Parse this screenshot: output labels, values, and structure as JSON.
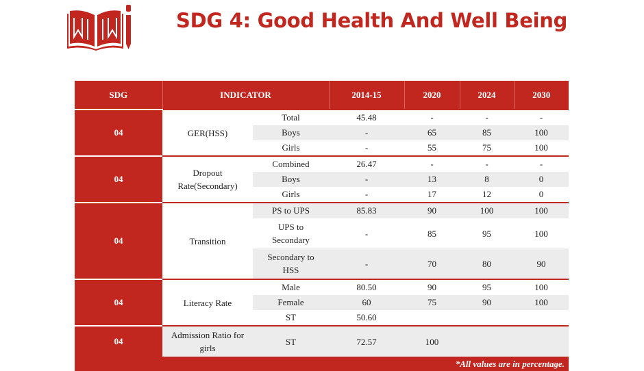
{
  "header": {
    "title": "SDG 4: Good Health And Well Being",
    "logo_icon": "book-pencil-icon",
    "accent": "#c1271f"
  },
  "table": {
    "columns": [
      "SDG",
      "INDICATOR",
      "2014-15",
      "2020",
      "2024",
      "2030"
    ],
    "groups": [
      {
        "sdg": "04",
        "indicator": "GER(HSS)",
        "rows": [
          {
            "sub": "Total",
            "v2014": "45.48",
            "v2020": "-",
            "v2024": "-",
            "v2030": "-"
          },
          {
            "sub": "Boys",
            "v2014": "-",
            "v2020": "65",
            "v2024": "85",
            "v2030": "100"
          },
          {
            "sub": "Girls",
            "v2014": "-",
            "v2020": "55",
            "v2024": "75",
            "v2030": "100"
          }
        ]
      },
      {
        "sdg": "04",
        "indicator": "Dropout Rate(Secondary)",
        "rows": [
          {
            "sub": "Combined",
            "v2014": "26.47",
            "v2020": "-",
            "v2024": "-",
            "v2030": "-"
          },
          {
            "sub": "Boys",
            "v2014": "-",
            "v2020": "13",
            "v2024": "8",
            "v2030": "0"
          },
          {
            "sub": "Girls",
            "v2014": "-",
            "v2020": "17",
            "v2024": "12",
            "v2030": "0"
          }
        ]
      },
      {
        "sdg": "04",
        "indicator": "Transition",
        "rows": [
          {
            "sub": "PS to UPS",
            "v2014": "85.83",
            "v2020": "90",
            "v2024": "100",
            "v2030": "100"
          },
          {
            "sub": "UPS to Secondary",
            "v2014": "-",
            "v2020": "85",
            "v2024": "95",
            "v2030": "100"
          },
          {
            "sub": "Secondary to HSS",
            "v2014": "-",
            "v2020": "70",
            "v2024": "80",
            "v2030": "90"
          }
        ]
      },
      {
        "sdg": "04",
        "indicator": "Literacy Rate",
        "rows": [
          {
            "sub": "Male",
            "v2014": "80.50",
            "v2020": "90",
            "v2024": "95",
            "v2030": "100"
          },
          {
            "sub": "Female",
            "v2014": "60",
            "v2020": "75",
            "v2024": "90",
            "v2030": "100"
          },
          {
            "sub": "ST",
            "v2014": "50.60",
            "v2020": "",
            "v2024": "",
            "v2030": ""
          }
        ]
      },
      {
        "sdg": "04",
        "indicator": "Admission Ratio for girls",
        "rows": [
          {
            "sub": "ST",
            "v2014": "72.57",
            "v2020": "100",
            "v2024": "",
            "v2030": ""
          }
        ]
      }
    ],
    "footnote": "*All values are in percentage."
  }
}
